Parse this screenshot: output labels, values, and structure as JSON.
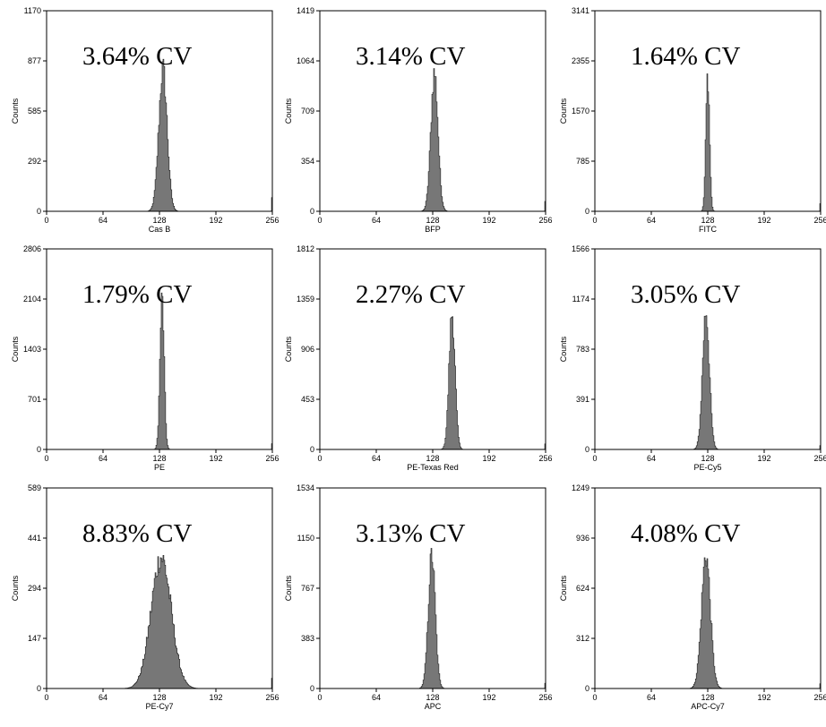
{
  "colors": {
    "fill": "#777777",
    "stroke": "#222222",
    "axis": "#000000",
    "background": "#ffffff"
  },
  "chart_data": [
    {
      "type": "histogram",
      "xlabel": "Cas B",
      "ylabel": "Counts",
      "annotation": "3.64% CV",
      "xlim": [
        0,
        256
      ],
      "ylim": [
        0,
        1170
      ],
      "xticks": [
        "0",
        "64",
        "128",
        "192",
        "256"
      ],
      "yticks": [
        "0",
        "292",
        "585",
        "877",
        "1170"
      ],
      "peak": {
        "center": 132,
        "height": 830,
        "width": 4.8
      },
      "edge_spike": 80
    },
    {
      "type": "histogram",
      "xlabel": "BFP",
      "ylabel": "Counts",
      "annotation": "3.14% CV",
      "xlim": [
        0,
        256
      ],
      "ylim": [
        0,
        1419
      ],
      "xticks": [
        "0",
        "64",
        "128",
        "192",
        "256"
      ],
      "yticks": [
        "0",
        "354",
        "709",
        "1064",
        "1419"
      ],
      "peak": {
        "center": 130,
        "height": 980,
        "width": 4.1
      },
      "edge_spike": 70
    },
    {
      "type": "histogram",
      "xlabel": "FITC",
      "ylabel": "Counts",
      "annotation": "1.64% CV",
      "xlim": [
        0,
        256
      ],
      "ylim": [
        0,
        3141
      ],
      "xticks": [
        "0",
        "64",
        "128",
        "192",
        "256"
      ],
      "yticks": [
        "0",
        "785",
        "1570",
        "2355",
        "3141"
      ],
      "peak": {
        "center": 128,
        "height": 2130,
        "width": 2.1
      },
      "edge_spike": 120
    },
    {
      "type": "histogram",
      "xlabel": "PE",
      "ylabel": "Counts",
      "annotation": "1.79% CV",
      "xlim": [
        0,
        256
      ],
      "ylim": [
        0,
        2806
      ],
      "xticks": [
        "0",
        "64",
        "128",
        "192",
        "256"
      ],
      "yticks": [
        "0",
        "701",
        "1403",
        "2104",
        "2806"
      ],
      "peak": {
        "center": 131,
        "height": 2110,
        "width": 2.4
      },
      "edge_spike": 80
    },
    {
      "type": "histogram",
      "xlabel": "PE-Texas Red",
      "ylabel": "Counts",
      "annotation": "2.27% CV",
      "xlim": [
        0,
        256
      ],
      "ylim": [
        0,
        1812
      ],
      "xticks": [
        "0",
        "64",
        "128",
        "192",
        "256"
      ],
      "yticks": [
        "0",
        "453",
        "906",
        "1359",
        "1812"
      ],
      "peak": {
        "center": 150,
        "height": 1230,
        "width": 3.4
      },
      "edge_spike": 50
    },
    {
      "type": "histogram",
      "xlabel": "PE-Cy5",
      "ylabel": "Counts",
      "annotation": "3.05% CV",
      "xlim": [
        0,
        256
      ],
      "ylim": [
        0,
        1566
      ],
      "xticks": [
        "0",
        "64",
        "128",
        "192",
        "256"
      ],
      "yticks": [
        "0",
        "391",
        "783",
        "1174",
        "1566"
      ],
      "peak": {
        "center": 126,
        "height": 1080,
        "width": 3.9
      },
      "edge_spike": 30
    },
    {
      "type": "histogram",
      "xlabel": "PE-Cy7",
      "ylabel": "Counts",
      "annotation": "8.83% CV",
      "xlim": [
        0,
        256
      ],
      "ylim": [
        0,
        589
      ],
      "xticks": [
        "0",
        "64",
        "128",
        "192",
        "256"
      ],
      "yticks": [
        "0",
        "147",
        "294",
        "441",
        "589"
      ],
      "peak": {
        "center": 130,
        "height": 385,
        "width": 11.5
      },
      "edge_spike": 30
    },
    {
      "type": "histogram",
      "xlabel": "APC",
      "ylabel": "Counts",
      "annotation": "3.13% CV",
      "xlim": [
        0,
        256
      ],
      "ylim": [
        0,
        1534
      ],
      "xticks": [
        "0",
        "64",
        "128",
        "192",
        "256"
      ],
      "yticks": [
        "0",
        "383",
        "767",
        "1150",
        "1534"
      ],
      "peak": {
        "center": 127,
        "height": 1020,
        "width": 4.0
      },
      "edge_spike": 40
    },
    {
      "type": "histogram",
      "xlabel": "APC-Cy7",
      "ylabel": "Counts",
      "annotation": "4.08% CV",
      "xlim": [
        0,
        256
      ],
      "ylim": [
        0,
        1249
      ],
      "xticks": [
        "0",
        "64",
        "128",
        "192",
        "256"
      ],
      "yticks": [
        "0",
        "312",
        "624",
        "936",
        "1249"
      ],
      "peak": {
        "center": 126,
        "height": 830,
        "width": 5.1
      },
      "edge_spike": 30
    }
  ]
}
